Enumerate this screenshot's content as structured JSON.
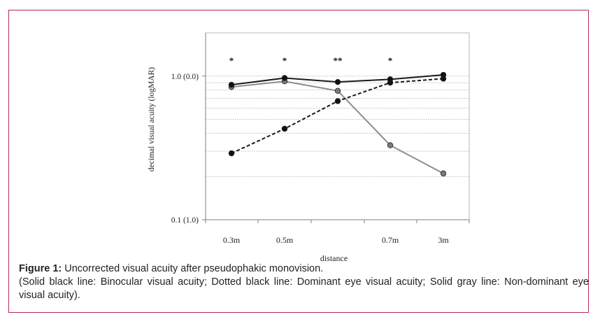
{
  "caption": {
    "label": "Figure 1:",
    "title": "Uncorrected visual acuity after pseudophakic monovision.",
    "note": "(Solid black line: Binocular visual acuity; Dotted black line: Dominant eye visual acuity; Solid gray line: Non-dominant eye visual acuity)."
  },
  "chart_data": {
    "type": "line",
    "xlabel": "distance",
    "ylabel": "decimal visual acuity (logMAR)",
    "categories": [
      "0.3m",
      "0.5m",
      "",
      "0.7m",
      "3m"
    ],
    "y_scale": "log",
    "ylim": [
      0.1,
      2.0
    ],
    "yticks": [
      {
        "value": 1.0,
        "label": "1.0 (0.0)"
      },
      {
        "value": 0.1,
        "label": "0.1 (1.0)"
      }
    ],
    "significance": [
      "*",
      "*",
      "**",
      "*",
      ""
    ],
    "grid": true,
    "legend": "none",
    "series": [
      {
        "style": "solid",
        "color": "#1a1a1a",
        "marker_fill": "#111111",
        "values": [
          0.87,
          0.97,
          0.91,
          0.95,
          1.02
        ]
      },
      {
        "style": "dashed",
        "color": "#1a1a1a",
        "marker_fill": "#111111",
        "values": [
          0.29,
          0.43,
          0.67,
          0.9,
          0.96
        ]
      },
      {
        "style": "solid",
        "color": "#8c8c8c",
        "marker_fill": "#7a7a7a",
        "values": [
          0.84,
          0.92,
          0.79,
          0.33,
          0.21
        ]
      }
    ]
  }
}
